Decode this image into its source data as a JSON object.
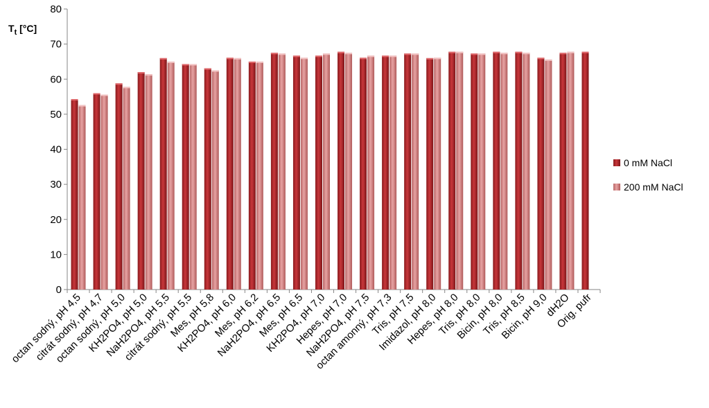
{
  "chart_data": {
    "type": "bar",
    "ylabel": "T",
    "ylabel_sub": "t",
    "ylabel_unit": " [°C]",
    "ylim": [
      0,
      80
    ],
    "yticks": [
      0,
      10,
      20,
      30,
      40,
      50,
      60,
      70,
      80
    ],
    "grid": false,
    "legend_position": "right",
    "categories": [
      "octan sodný, pH 4,5",
      "citrát sodný, pH 4,7",
      "octan sodný, pH 5,0",
      "KH2PO4, pH 5,0",
      "NaH2PO4, pH 5,5",
      "citrát sodný, pH 5,5",
      "Mes, pH 5,8",
      "KH2PO4, pH 6,0",
      "Mes, pH 6,2",
      "NaH2PO4, pH 6,5",
      "Mes, pH 6,5",
      "KH2PO4, pH 7,0",
      "Hepes, pH 7,0",
      "NaH2PO4, pH 7,5",
      "octan amonný, pH 7,3",
      "Tris, pH 7,5",
      "Imidazol, pH 8,0",
      "Hepes, pH 8,0",
      "Tris, pH 8,0",
      "Bicin, pH 8,0",
      "Tris, pH 8,5",
      "Bicin, pH 9,0",
      "dH2O",
      "Orig. pufr"
    ],
    "series": [
      {
        "name": "0 mM NaCl",
        "color": "#b8282c",
        "values": [
          54.3,
          56.0,
          58.8,
          62.0,
          66.0,
          64.3,
          63.1,
          66.1,
          65.0,
          67.5,
          66.7,
          66.7,
          67.8,
          66.1,
          66.7,
          67.3,
          66.0,
          67.8,
          67.3,
          67.8,
          67.8,
          66.1,
          67.5,
          67.8
        ]
      },
      {
        "name": "200 mM NaCl",
        "color": "#d98585",
        "values": [
          52.6,
          55.6,
          57.8,
          61.4,
          65.0,
          64.3,
          62.5,
          66.0,
          65.0,
          67.3,
          66.1,
          67.3,
          67.5,
          66.7,
          66.7,
          67.3,
          66.1,
          67.8,
          67.3,
          67.5,
          67.5,
          65.6,
          67.8,
          null
        ]
      }
    ]
  }
}
